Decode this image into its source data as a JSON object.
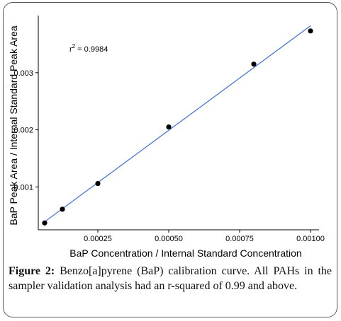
{
  "caption": {
    "label": "Figure 2:",
    "text": "Benzo[a]pyrene (BaP) calibration curve. All PAHs in the sampler validation analysis had an r-squared of 0.99 and above."
  },
  "chart_data": {
    "type": "scatter",
    "title": "",
    "xlabel": "BaP Concentration / Internal Standard Concentration",
    "ylabel": "BaP Peak Area / Internal Standard Peak Area",
    "xlim": [
      4e-05,
      0.00103
    ],
    "ylim": [
      0.00025,
      0.004
    ],
    "x_ticks": [
      0.00025,
      0.0005,
      0.00075,
      0.001
    ],
    "x_tick_labels": [
      "0.00025",
      "0.00050",
      "0.00075",
      "0.00100"
    ],
    "y_ticks": [
      0.001,
      0.002,
      0.003
    ],
    "y_tick_labels": [
      "0.001",
      "0.002",
      "0.003"
    ],
    "grid": false,
    "points": [
      {
        "x": 6.25e-05,
        "y": 0.00037
      },
      {
        "x": 0.000125,
        "y": 0.00061
      },
      {
        "x": 0.00025,
        "y": 0.00106
      },
      {
        "x": 0.0005,
        "y": 0.00205
      },
      {
        "x": 0.0008,
        "y": 0.00315
      },
      {
        "x": 0.001,
        "y": 0.00373
      }
    ],
    "fit_line": {
      "x": [
        6.25e-05,
        0.001
      ],
      "y": [
        0.00039,
        0.00382
      ]
    },
    "annotation": {
      "prefix": "r",
      "superscript": "2",
      "text": " = 0.9984"
    },
    "colors": {
      "points": "#000000",
      "fit_line": "#3b6fd4",
      "axes": "#000000"
    }
  }
}
